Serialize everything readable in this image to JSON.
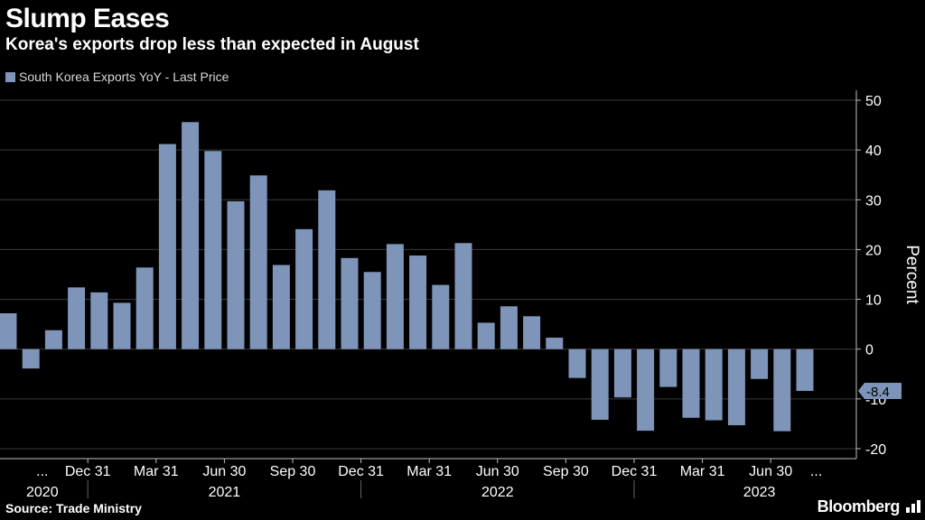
{
  "header": {
    "title": "Slump Eases",
    "subtitle": "Korea's exports drop less than expected in August"
  },
  "footer": {
    "source": "Source: Trade Ministry",
    "brand": "Bloomberg"
  },
  "colors": {
    "bar": "#7e94b8",
    "background": "#000000",
    "grid": "#3a3a3a",
    "axis": "#bfbfbf",
    "text": "#ffffff",
    "muted": "#d8d8d8"
  },
  "chart_data": {
    "type": "bar",
    "title": "Slump Eases",
    "subtitle": "Korea's exports drop less than expected in August",
    "legend": [
      "South Korea Exports YoY - Last Price"
    ],
    "legend_position": "top-left",
    "ylabel": "Percent",
    "ylim": [
      -22,
      52
    ],
    "yticks": [
      50,
      40,
      30,
      20,
      10,
      0,
      -10,
      -20
    ],
    "grid": true,
    "y_axis_side": "right",
    "last_value_label": "-8.4",
    "categories": [
      "2020-09",
      "2020-10",
      "2020-11",
      "2020-12",
      "2021-01",
      "2021-02",
      "2021-03",
      "2021-04",
      "2021-05",
      "2021-06",
      "2021-07",
      "2021-08",
      "2021-09",
      "2021-10",
      "2021-11",
      "2021-12",
      "2022-01",
      "2022-02",
      "2022-03",
      "2022-04",
      "2022-05",
      "2022-06",
      "2022-07",
      "2022-08",
      "2022-09",
      "2022-10",
      "2022-11",
      "2022-12",
      "2023-01",
      "2023-02",
      "2023-03",
      "2023-04",
      "2023-05",
      "2023-06",
      "2023-07",
      "2023-08"
    ],
    "values": [
      7.2,
      -3.9,
      3.8,
      12.4,
      11.4,
      9.3,
      16.4,
      41.2,
      45.6,
      39.8,
      29.7,
      34.9,
      16.9,
      24.1,
      31.9,
      18.3,
      15.5,
      21.1,
      18.8,
      12.9,
      21.3,
      5.3,
      8.6,
      6.6,
      2.3,
      -5.8,
      -14.2,
      -9.7,
      -16.4,
      -7.6,
      -13.8,
      -14.3,
      -15.3,
      -6.0,
      -16.5,
      -8.4
    ],
    "x_tick_labels": [
      "...",
      "Dec 31",
      "Mar 31",
      "Jun 30",
      "Sep 30",
      "Dec 31",
      "Mar 31",
      "Jun 30",
      "Sep 30",
      "Dec 31",
      "Mar 31",
      "Jun 30",
      "..."
    ],
    "x_tick_category_index": [
      1.5,
      3.5,
      6.5,
      9.5,
      12.5,
      15.5,
      18.5,
      21.5,
      24.5,
      27.5,
      30.5,
      33.5,
      35.5
    ],
    "year_labels": [
      "2020",
      "2021",
      "2022",
      "2023"
    ],
    "year_label_center_index": [
      1.5,
      9.5,
      21.5,
      33.0
    ],
    "year_divider_index": [
      3.5,
      15.5,
      27.5
    ]
  }
}
